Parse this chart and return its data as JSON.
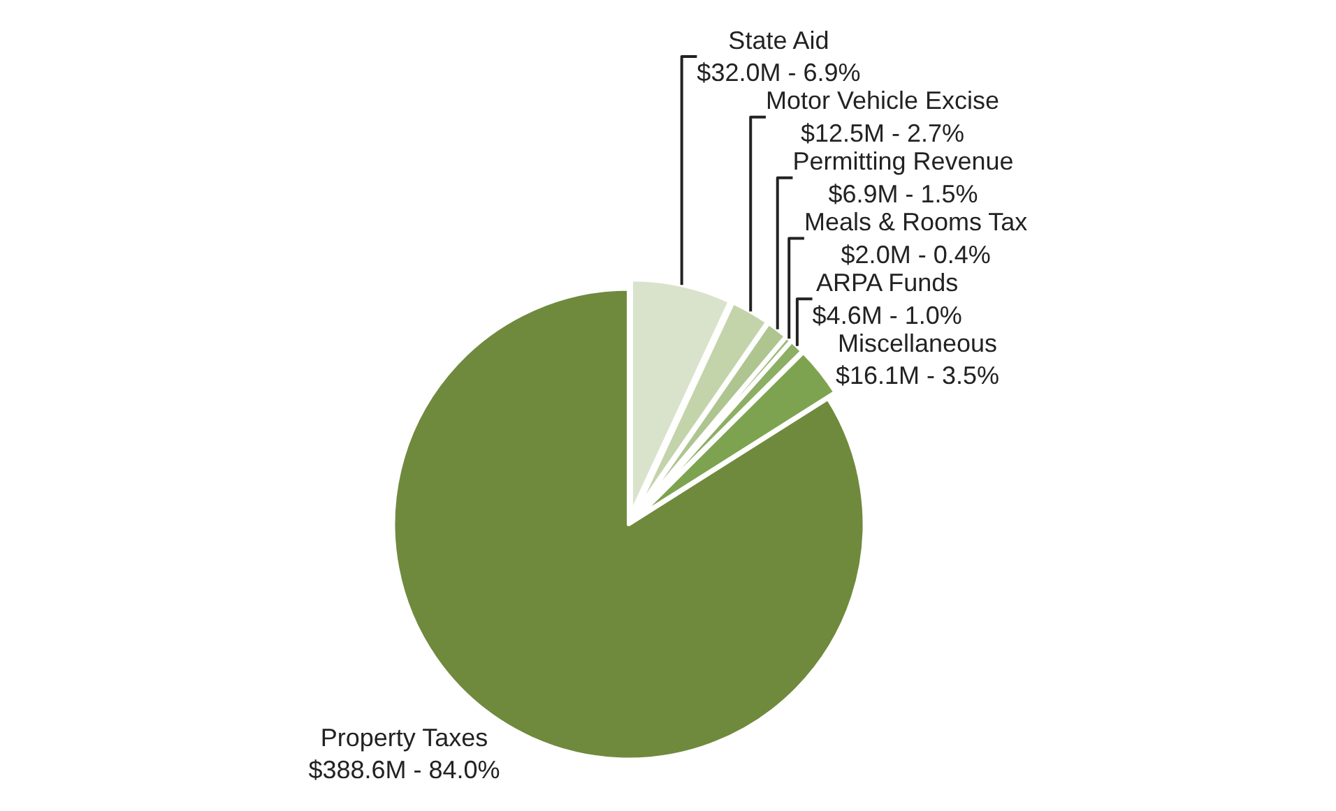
{
  "chart_data": {
    "type": "pie",
    "categories": [
      "State Aid",
      "Motor Vehicle Excise",
      "Permitting Revenue",
      "Meals & Rooms Tax",
      "ARPA Funds",
      "Miscellaneous",
      "Property Taxes"
    ],
    "values": [
      32000000,
      12500000,
      6900000,
      2000000,
      4600000,
      16100000,
      388600000
    ],
    "value_labels": [
      "$32.0M - 6.9%",
      "$12.5M - 2.7%",
      "$6.9M - 1.5%",
      "$2.0M - 0.4%",
      "$4.6M - 1.0%",
      "$16.1M - 3.5%",
      "$388.6M - 84.0%"
    ],
    "colors": [
      "#d9e3cc",
      "#c3d4ab",
      "#aec58f",
      "#9cb878",
      "#8caf63",
      "#7da350",
      "#6f8a3c"
    ],
    "legend": false
  }
}
